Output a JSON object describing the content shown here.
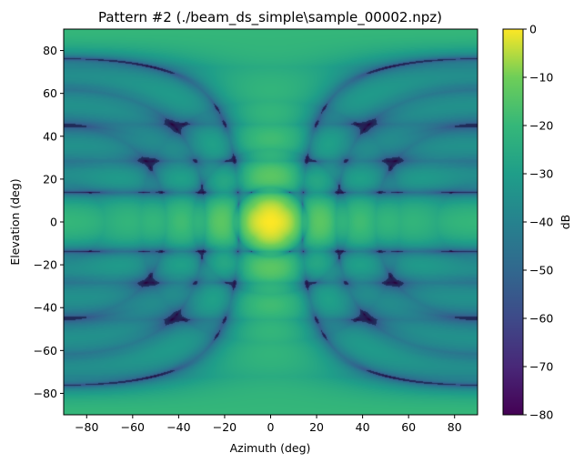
{
  "chart_data": {
    "type": "heatmap",
    "title": "Pattern #2 (./beam_ds_simple\\sample_00002.npz)",
    "xlabel": "Azimuth (deg)",
    "ylabel": "Elevation (deg)",
    "xlim": [
      -90,
      90
    ],
    "ylim": [
      -90,
      90
    ],
    "xticks": [
      -80,
      -60,
      -40,
      -20,
      0,
      20,
      40,
      60,
      80
    ],
    "yticks": [
      -80,
      -60,
      -40,
      -20,
      0,
      20,
      40,
      60,
      80
    ],
    "colorbar": {
      "label": "dB",
      "range": [
        -80,
        0
      ],
      "ticks": [
        0,
        -10,
        -20,
        -30,
        -40,
        -50,
        -60,
        -70,
        -80
      ],
      "colormap": "viridis"
    },
    "main_beam": {
      "azimuth": 0,
      "elevation": 0,
      "value_db": 0
    },
    "grid": false,
    "legend": "none"
  }
}
